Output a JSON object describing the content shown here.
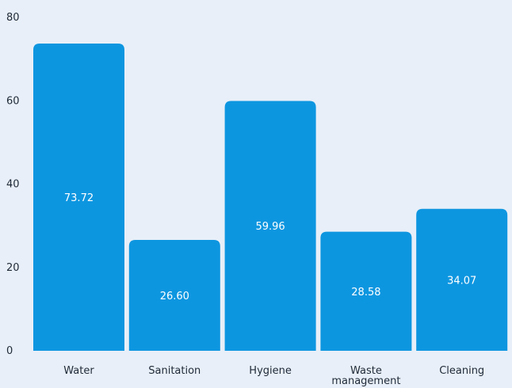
{
  "chart_data": {
    "type": "bar",
    "title": "",
    "xlabel": "",
    "ylabel": "",
    "categories": [
      "Water",
      "Sanitation",
      "Hygiene",
      "Waste management",
      "Cleaning"
    ],
    "category_label_lines": [
      [
        "Water"
      ],
      [
        "Sanitation"
      ],
      [
        "Hygiene"
      ],
      [
        "Waste",
        "management"
      ],
      [
        "Cleaning"
      ]
    ],
    "values": [
      73.72,
      26.6,
      59.96,
      28.58,
      34.07
    ],
    "value_labels": [
      "73.72",
      "26.60",
      "59.96",
      "28.58",
      "34.07"
    ],
    "ylim": [
      0,
      80
    ],
    "yticks": [
      0,
      20,
      40,
      60,
      80
    ],
    "grid": false,
    "legend": "none",
    "colors": {
      "bar": "#0d96e0",
      "background": "#e8eff8",
      "text": "#1f2a37",
      "data_label": "#ffffff"
    }
  }
}
